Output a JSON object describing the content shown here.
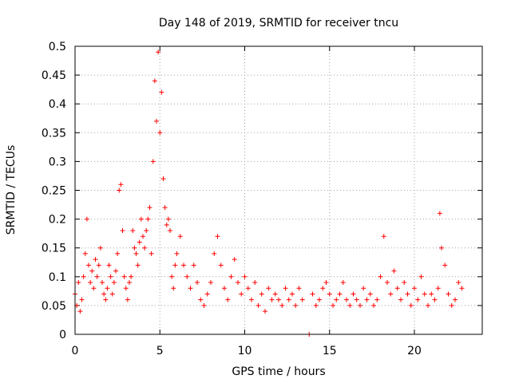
{
  "chart_data": {
    "type": "scatter",
    "title": "Day 148 of 2019, SRMTID for receiver tncu",
    "xlabel": "GPS time / hours",
    "ylabel": "SRMTID / TECUs",
    "xlim": [
      0,
      24
    ],
    "ylim": [
      0,
      0.5
    ],
    "x_ticks": [
      0,
      5,
      10,
      15,
      20
    ],
    "x_tick_labels": [
      "0",
      "5",
      "10",
      "15",
      "20"
    ],
    "y_ticks": [
      0,
      0.05,
      0.1,
      0.15,
      0.2,
      0.25,
      0.3,
      0.35,
      0.4,
      0.45,
      0.5
    ],
    "y_tick_labels": [
      "0",
      "0.05",
      "0.1",
      "0.15",
      "0.2",
      "0.25",
      "0.3",
      "0.35",
      "0.4",
      "0.45",
      "0.5"
    ],
    "grid": true,
    "marker": "+",
    "marker_color": "#ff0000",
    "series": [
      {
        "name": "SRMTID",
        "x": [
          0.0,
          0.1,
          0.2,
          0.3,
          0.4,
          0.5,
          0.6,
          0.7,
          0.8,
          0.9,
          1.0,
          1.1,
          1.2,
          1.3,
          1.4,
          1.5,
          1.6,
          1.7,
          1.8,
          1.9,
          2.0,
          2.1,
          2.2,
          2.3,
          2.4,
          2.5,
          2.6,
          2.7,
          2.8,
          2.9,
          3.0,
          3.1,
          3.2,
          3.3,
          3.4,
          3.5,
          3.6,
          3.7,
          3.8,
          3.9,
          4.0,
          4.1,
          4.2,
          4.3,
          4.4,
          4.5,
          4.6,
          4.7,
          4.8,
          4.9,
          5.0,
          5.1,
          5.2,
          5.3,
          5.4,
          5.5,
          5.6,
          5.7,
          5.8,
          5.9,
          6.0,
          6.2,
          6.4,
          6.6,
          6.8,
          7.0,
          7.2,
          7.4,
          7.6,
          7.8,
          8.0,
          8.2,
          8.4,
          8.6,
          8.8,
          9.0,
          9.2,
          9.4,
          9.6,
          9.8,
          10.0,
          10.2,
          10.4,
          10.6,
          10.8,
          11.0,
          11.2,
          11.4,
          11.6,
          11.8,
          12.0,
          12.2,
          12.4,
          12.6,
          12.8,
          13.0,
          13.2,
          13.4,
          13.8,
          14.0,
          14.2,
          14.4,
          14.6,
          14.8,
          15.0,
          15.2,
          15.4,
          15.6,
          15.8,
          16.0,
          16.2,
          16.4,
          16.6,
          16.8,
          17.0,
          17.2,
          17.4,
          17.6,
          17.8,
          18.0,
          18.2,
          18.4,
          18.6,
          18.8,
          19.0,
          19.2,
          19.4,
          19.6,
          19.8,
          20.0,
          20.2,
          20.4,
          20.6,
          20.8,
          21.0,
          21.2,
          21.4,
          21.5,
          21.6,
          21.8,
          22.0,
          22.2,
          22.4,
          22.6,
          22.8
        ],
        "y": [
          0.07,
          0.05,
          0.09,
          0.04,
          0.06,
          0.1,
          0.14,
          0.2,
          0.12,
          0.09,
          0.11,
          0.08,
          0.13,
          0.1,
          0.12,
          0.15,
          0.09,
          0.07,
          0.06,
          0.08,
          0.12,
          0.1,
          0.07,
          0.09,
          0.11,
          0.14,
          0.25,
          0.26,
          0.18,
          0.1,
          0.08,
          0.06,
          0.09,
          0.1,
          0.18,
          0.15,
          0.14,
          0.12,
          0.16,
          0.2,
          0.17,
          0.15,
          0.18,
          0.2,
          0.22,
          0.14,
          0.3,
          0.44,
          0.37,
          0.49,
          0.35,
          0.42,
          0.27,
          0.22,
          0.19,
          0.2,
          0.18,
          0.1,
          0.08,
          0.12,
          0.14,
          0.17,
          0.12,
          0.1,
          0.08,
          0.12,
          0.09,
          0.06,
          0.05,
          0.07,
          0.09,
          0.14,
          0.17,
          0.12,
          0.08,
          0.06,
          0.1,
          0.13,
          0.09,
          0.07,
          0.1,
          0.08,
          0.06,
          0.09,
          0.05,
          0.07,
          0.04,
          0.08,
          0.06,
          0.07,
          0.06,
          0.05,
          0.08,
          0.06,
          0.07,
          0.05,
          0.08,
          0.06,
          0.0,
          0.07,
          0.05,
          0.06,
          0.08,
          0.09,
          0.07,
          0.05,
          0.06,
          0.07,
          0.09,
          0.06,
          0.05,
          0.07,
          0.06,
          0.05,
          0.08,
          0.06,
          0.07,
          0.05,
          0.06,
          0.1,
          0.17,
          0.09,
          0.07,
          0.11,
          0.08,
          0.06,
          0.09,
          0.07,
          0.05,
          0.08,
          0.06,
          0.1,
          0.07,
          0.05,
          0.07,
          0.06,
          0.08,
          0.21,
          0.15,
          0.12,
          0.07,
          0.05,
          0.06,
          0.09,
          0.08
        ]
      }
    ]
  }
}
